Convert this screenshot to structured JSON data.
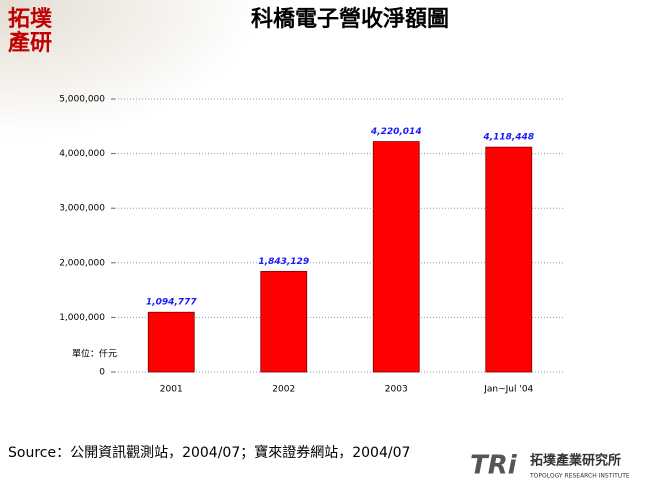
{
  "chart_data": {
    "type": "bar",
    "title": "科橋電子營收淨額圖",
    "categories": [
      "2001",
      "2002",
      "2003",
      "Jan~Jul '04"
    ],
    "values": [
      1094777,
      1843129,
      4220014,
      4118448
    ],
    "value_labels": [
      "1,094,777",
      "1,843,129",
      "4,220,014",
      "4,118,448"
    ],
    "color": "#ff0000",
    "ylim": [
      0,
      5000000
    ],
    "yticks": [
      0,
      {
        "value": 1000000,
        "label": "1,000,000"
      },
      {
        "value": 2000000,
        "label": "2,000,000"
      },
      {
        "value": 3000000,
        "label": "3,000,000"
      },
      {
        "value": 4000000,
        "label": "4,000,000"
      },
      {
        "value": 5000000,
        "label": "5,000,000"
      }
    ],
    "grid": true,
    "unit_note": "單位：仟元"
  },
  "source": "Source：公開資訊觀測站，2004/07；寶來證券網站，2004/07",
  "logo": {
    "top": "拓墣",
    "bottom": "產研"
  },
  "footer": {
    "mark": "TRi",
    "name": "拓墣產業研究所",
    "name_en": "TOPOLOGY RESEARCH INSTITUTE"
  }
}
